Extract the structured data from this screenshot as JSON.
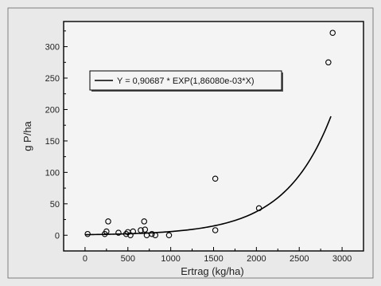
{
  "chart_data": {
    "type": "scatter",
    "xlabel": "Ertrag (kg/ha)",
    "ylabel": "g P/ha",
    "xlim": [
      -250,
      3250
    ],
    "ylim": [
      -25,
      340
    ],
    "x_ticks": [
      0,
      500,
      1000,
      1500,
      2000,
      2500,
      3000
    ],
    "y_ticks": [
      0,
      50,
      100,
      150,
      200,
      250,
      300
    ],
    "grid": false,
    "legend_position": "top-left",
    "legend_label": "Y = 0,90687 * EXP(1,86080e-03*X)",
    "fit": {
      "a": 0.90687,
      "b": 0.0018608,
      "x_range": [
        0,
        2870
      ]
    },
    "points": [
      {
        "x": 30,
        "y": 2
      },
      {
        "x": 230,
        "y": 2
      },
      {
        "x": 250,
        "y": 6
      },
      {
        "x": 270,
        "y": 22
      },
      {
        "x": 390,
        "y": 4
      },
      {
        "x": 480,
        "y": 2
      },
      {
        "x": 500,
        "y": 5
      },
      {
        "x": 530,
        "y": 0
      },
      {
        "x": 560,
        "y": 6
      },
      {
        "x": 650,
        "y": 8
      },
      {
        "x": 690,
        "y": 22
      },
      {
        "x": 700,
        "y": 9
      },
      {
        "x": 720,
        "y": 0
      },
      {
        "x": 780,
        "y": 2
      },
      {
        "x": 820,
        "y": 0
      },
      {
        "x": 980,
        "y": 0
      },
      {
        "x": 1520,
        "y": 8
      },
      {
        "x": 1520,
        "y": 90
      },
      {
        "x": 2030,
        "y": 43
      },
      {
        "x": 2840,
        "y": 275
      },
      {
        "x": 2890,
        "y": 322
      }
    ]
  }
}
